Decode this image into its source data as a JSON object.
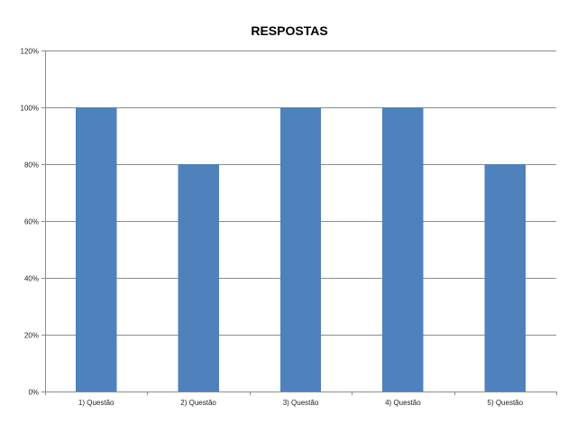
{
  "chart_data": {
    "type": "bar",
    "title": "RESPOSTAS",
    "categories": [
      "1) Questão",
      "2) Questão",
      "3) Questão",
      "4) Questão",
      "5) Questão"
    ],
    "values": [
      100,
      80,
      100,
      100,
      80
    ],
    "ylim": [
      0,
      120
    ],
    "yticks": [
      0,
      20,
      40,
      60,
      80,
      100,
      120
    ],
    "ytick_labels": [
      "0%",
      "20%",
      "40%",
      "60%",
      "80%",
      "100%",
      "120%"
    ],
    "xlabel": "",
    "ylabel": "",
    "grid": true,
    "legend": "none",
    "bar_color": "#4f81bd"
  }
}
